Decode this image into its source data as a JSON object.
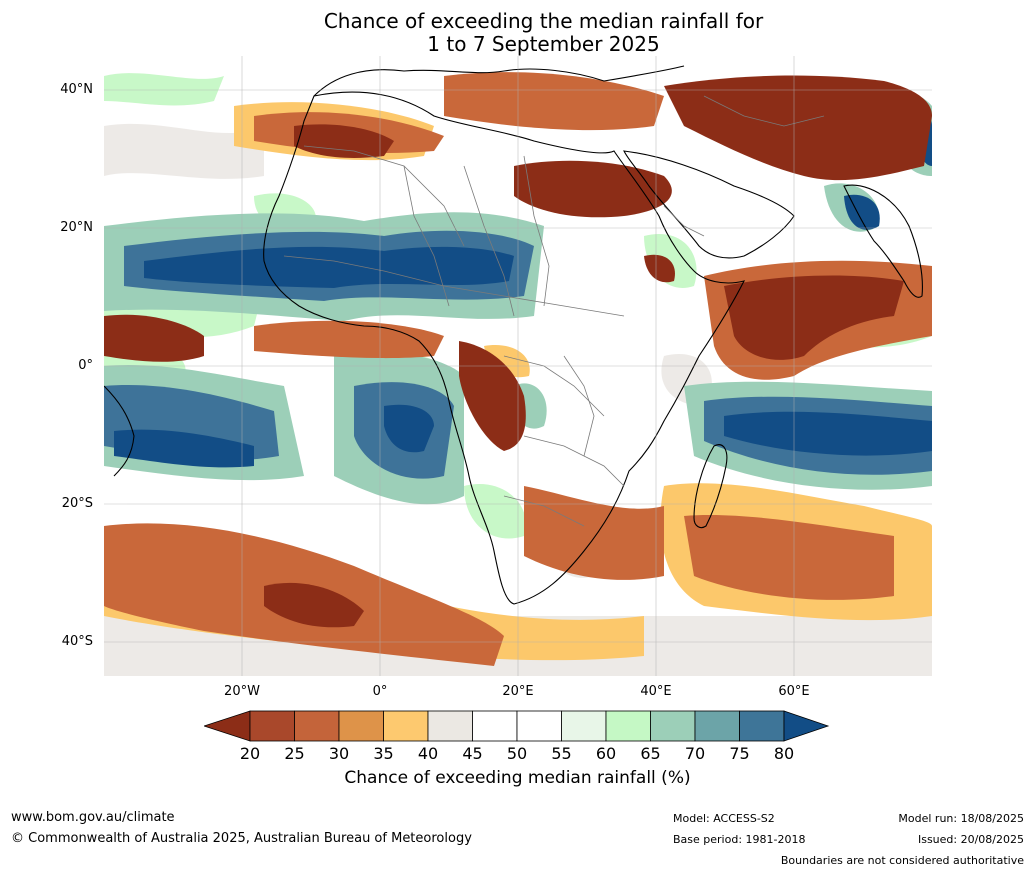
{
  "title": {
    "line1": "Chance of exceeding the median rainfall for",
    "line2": "1 to 7 September 2025"
  },
  "map": {
    "lat_labels": [
      "40°N",
      "20°N",
      "0°",
      "20°S",
      "40°S"
    ],
    "lon_labels": [
      "20°W",
      "0°",
      "20°E",
      "40°E",
      "60°E"
    ],
    "colors": {
      "brown_dark": "#8c2d17",
      "brown": "#b04a2a",
      "orange_dark": "#c9683a",
      "orange": "#e0954a",
      "yellow": "#fcc86b",
      "grey": "#ebe8e4",
      "white": "#ffffff",
      "green_pale": "#e6f5e6",
      "green": "#c8f8c8",
      "teal_light": "#9ccfb8",
      "teal": "#6aa3a8",
      "blue_mid": "#3e7399",
      "blue_dark": "#124d86"
    }
  },
  "colorbar": {
    "ticks": [
      "20",
      "25",
      "30",
      "35",
      "40",
      "45",
      "50",
      "55",
      "60",
      "65",
      "70",
      "75",
      "80"
    ],
    "colors": [
      "#a9482b",
      "#c4643a",
      "#de9349",
      "#fdc96f",
      "#ebe8e3",
      "#ffffff",
      "#ffffff",
      "#e8f6e8",
      "#c5f8c5",
      "#9ccfb8",
      "#6ca4a8",
      "#3e7598"
    ],
    "under_color": "#8c2d17",
    "over_color": "#124d86",
    "label": "Chance of exceeding median rainfall (%)"
  },
  "footer": {
    "url": "www.bom.gov.au/climate",
    "copyright": "© Commonwealth of Australia 2025, Australian Bureau of Meteorology",
    "model": "Model: ACCESS-S2",
    "base_period": "Base period: 1981-2018",
    "model_run": "Model run: 18/08/2025",
    "issued": "Issued: 20/08/2025",
    "boundaries_note": "Boundaries are not considered authoritative"
  }
}
